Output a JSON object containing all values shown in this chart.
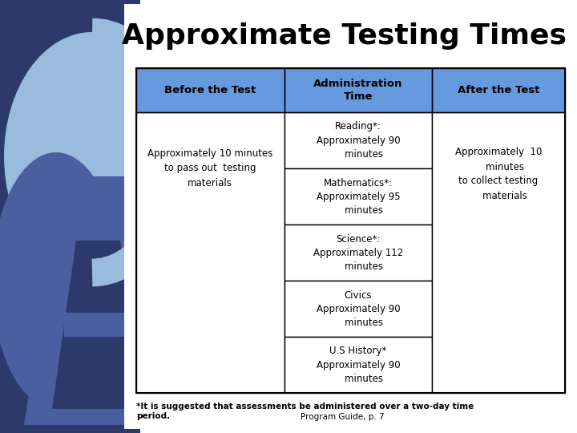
{
  "title": "Approximate Testing Times",
  "title_fontsize": 26,
  "title_fontweight": "bold",
  "background_color": "#ffffff",
  "header_bg_color": "#6699DD",
  "header_text_color": "#000000",
  "header_fontsize": 9.5,
  "header_fontweight": "bold",
  "cell_fontsize": 8.5,
  "cell_text_color": "#000000",
  "headers": [
    "Before the Test",
    "Administration\nTime",
    "After the Test"
  ],
  "col1_content": "Approximately 10 minutes\nto pass out  testing\nmaterials",
  "col2_rows": [
    "Reading*:\nApproximately 90\n    minutes",
    "Mathematics*:\nApproximately 95\n    minutes",
    "Science*:\nApproximately 112\n    minutes",
    "Civics\nApproximately 90\n    minutes",
    "U.S History*\nApproximately 90\n    minutes"
  ],
  "col3_content": "Approximately  10\n    minutes\nto collect testing\n    materials",
  "footnote1": "*It is suggested that assessments be administered over a two-day time\nperiod.",
  "footnote2": "Program Guide, p. 7",
  "footnote_fontsize": 7.5,
  "border_color": "#000000",
  "bg_dark_blue": "#2B3A6B",
  "bg_mid_blue": "#4A5FA0",
  "bg_light_blue": "#7799CC",
  "bg_lighter_blue": "#99BBDD"
}
